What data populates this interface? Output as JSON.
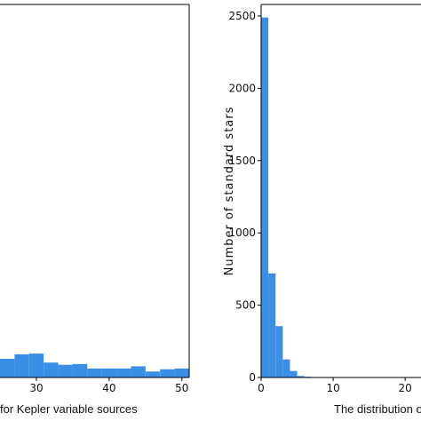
{
  "chart_data": [
    {
      "type": "histogram",
      "x_label": "for Kepler variable sources",
      "bins": [
        25,
        27,
        29,
        31,
        33,
        35,
        37,
        39,
        41,
        43,
        45,
        47,
        49,
        51
      ],
      "values": [
        5,
        6.2,
        6.4,
        4,
        3.4,
        3.6,
        2.4,
        2.4,
        2.4,
        3,
        1.6,
        2.2,
        2.4
      ],
      "color": "#3b8ee6",
      "xlim": [
        25,
        51
      ],
      "xticks": [
        30,
        40,
        50
      ],
      "ylim": [
        0,
        100
      ]
    },
    {
      "type": "histogram",
      "x_label": "The distribution of",
      "y_label": "Number of standard stars",
      "bins": [
        0,
        1,
        2,
        3,
        4,
        5,
        6,
        7,
        8,
        9,
        10
      ],
      "values": [
        2490,
        720,
        355,
        125,
        45,
        10,
        5,
        2,
        1,
        1
      ],
      "color": "#3b8ee6",
      "xlim": [
        0,
        22.2
      ],
      "xticks": [
        0,
        10,
        20
      ],
      "ylim": [
        0,
        2580
      ],
      "yticks": [
        0,
        500,
        1000,
        1500,
        2000,
        2500
      ]
    }
  ]
}
